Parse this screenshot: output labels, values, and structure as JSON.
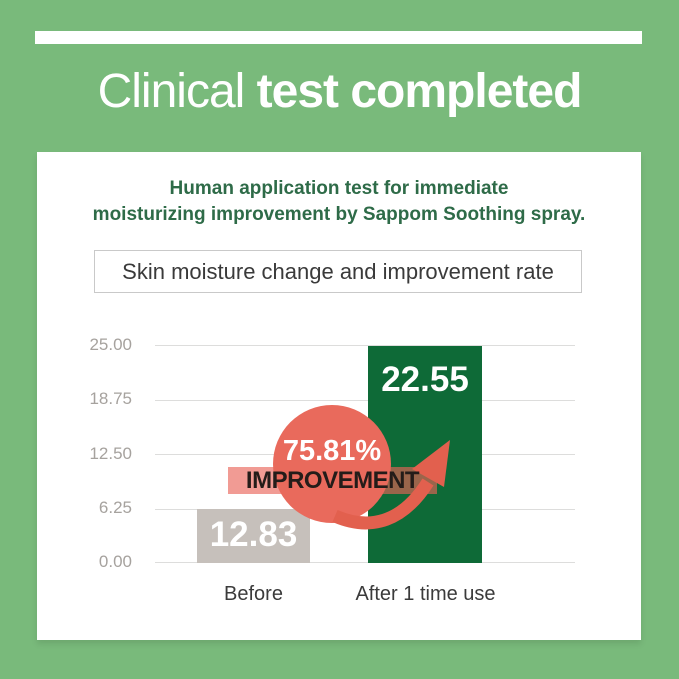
{
  "header": {
    "title_light": "Clinical ",
    "title_bold": "test completed"
  },
  "card": {
    "subtitle_line1": "Human application test for immediate",
    "subtitle_line2": "moisturizing improvement by Sappom Soothing spray.",
    "chart_title": "Skin moisture change and improvement rate"
  },
  "chart_data": {
    "type": "bar",
    "title": "Skin moisture change and improvement rate",
    "categories": [
      "Before",
      "After 1 time use"
    ],
    "values": [
      12.83,
      22.55
    ],
    "value_labels": [
      "12.83",
      "22.55"
    ],
    "y_ticks": [
      "25.00",
      "18.75",
      "12.50",
      "6.25",
      "0.00"
    ],
    "ylim": [
      0,
      25
    ],
    "grid": true,
    "legend": false,
    "bar_colors": [
      "#c6c0bb",
      "#0e6a37"
    ],
    "bar_display_height_pct": [
      24.8,
      99.5
    ],
    "annotation": {
      "percent": "75.81%",
      "label": "IMPROVEMENT"
    }
  },
  "colors": {
    "background_green": "#79ba7b",
    "card_white": "#ffffff",
    "subtitle_green": "#2e6b48",
    "bar_before_gray": "#c6c0bb",
    "bar_after_green": "#0e6a37",
    "badge_circle_salmon": "#e96a5c",
    "badge_band_pink": "rgba(233,99,88,0.64)",
    "arrow_salmon": "#e2604e",
    "improvement_text_dark": "#241c19",
    "axis_label_gray": "#a6a29e"
  }
}
